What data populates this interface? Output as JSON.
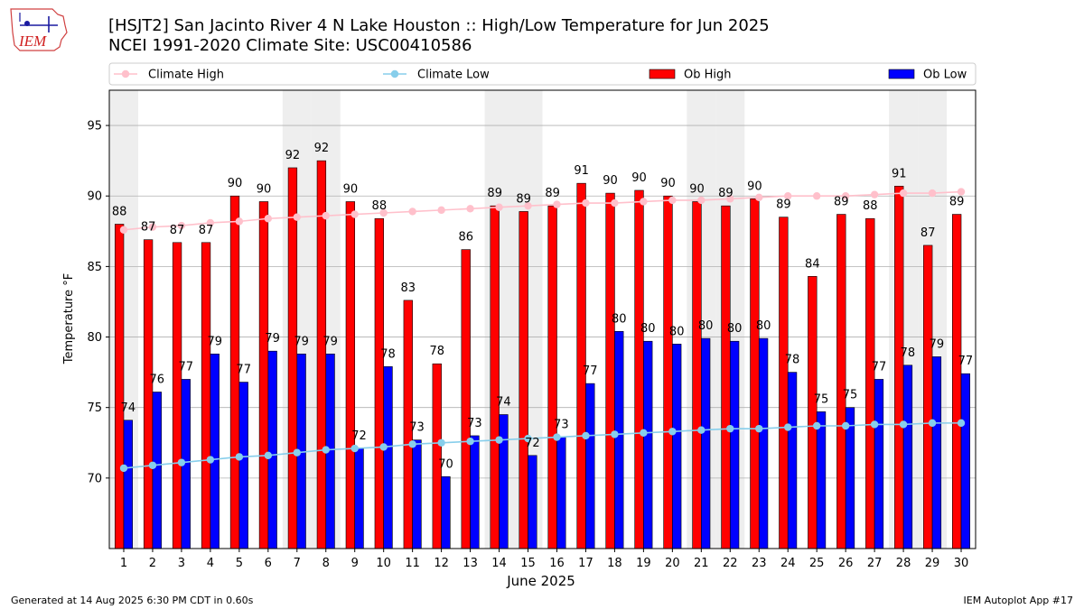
{
  "header": {
    "title_line1": "[HSJT2] San Jacinto River 4 N Lake Houston :: High/Low Temperature for Jun 2025",
    "title_line2": "NCEI 1991-2020 Climate Site: USC00410586",
    "logo_text": "IEM"
  },
  "footer": {
    "generated": "Generated at 14 Aug 2025 6:30 PM CDT in 0.60s",
    "app": "IEM Autoplot App #17"
  },
  "colors": {
    "ob_high": "#ff0000",
    "ob_low": "#0000ff",
    "climate_high": "#ffc0cb",
    "climate_low": "#87ceeb",
    "weekend_band": "#eeeeee",
    "grid": "#b0b0b0"
  },
  "chart_data": {
    "type": "bar",
    "xlabel": "June 2025",
    "ylabel": "Temperature °F",
    "ylim": [
      65,
      97.5
    ],
    "yticks": [
      70,
      75,
      80,
      85,
      90,
      95
    ],
    "grid": "horizontal",
    "legend_placement": "top",
    "categories": [
      1,
      2,
      3,
      4,
      5,
      6,
      7,
      8,
      9,
      10,
      11,
      12,
      13,
      14,
      15,
      16,
      17,
      18,
      19,
      20,
      21,
      22,
      23,
      24,
      25,
      26,
      27,
      28,
      29,
      30
    ],
    "weekend_days": [
      1,
      7,
      8,
      14,
      15,
      21,
      22,
      28,
      29
    ],
    "series": [
      {
        "name": "Ob High",
        "kind": "bar",
        "values": [
          88,
          86.9,
          86.7,
          86.7,
          90,
          89.6,
          92,
          92.5,
          89.6,
          88.4,
          82.6,
          78.1,
          86.2,
          89.3,
          88.9,
          89.3,
          90.9,
          90.2,
          90.4,
          90,
          89.6,
          89.3,
          89.8,
          88.5,
          84.3,
          88.7,
          88.4,
          90.7,
          86.5,
          88.7
        ],
        "labels": [
          88,
          87,
          87,
          87,
          90,
          90,
          92,
          92,
          90,
          88,
          83,
          78,
          86,
          89,
          89,
          89,
          91,
          90,
          90,
          90,
          90,
          89,
          90,
          89,
          84,
          89,
          88,
          91,
          87,
          89
        ]
      },
      {
        "name": "Ob Low",
        "kind": "bar",
        "values": [
          74.1,
          76.1,
          77,
          78.8,
          76.8,
          79,
          78.8,
          78.8,
          72.1,
          77.9,
          72.7,
          70.1,
          73,
          74.5,
          71.6,
          72.9,
          76.7,
          80.4,
          79.7,
          79.5,
          79.9,
          79.7,
          79.9,
          77.5,
          74.7,
          75,
          77,
          78,
          78.6,
          77.4
        ],
        "labels": [
          74,
          76,
          77,
          79,
          77,
          79,
          79,
          79,
          72,
          78,
          73,
          70,
          73,
          74,
          72,
          73,
          77,
          80,
          80,
          80,
          80,
          80,
          80,
          78,
          75,
          75,
          77,
          78,
          79,
          77
        ]
      },
      {
        "name": "Climate High",
        "kind": "line",
        "values": [
          87.6,
          87.8,
          87.9,
          88.1,
          88.2,
          88.4,
          88.5,
          88.6,
          88.7,
          88.8,
          88.9,
          89,
          89.1,
          89.2,
          89.3,
          89.4,
          89.5,
          89.5,
          89.6,
          89.7,
          89.7,
          89.8,
          89.9,
          90,
          90,
          90,
          90.1,
          90.2,
          90.2,
          90.3
        ]
      },
      {
        "name": "Climate Low",
        "kind": "line",
        "values": [
          70.7,
          70.9,
          71.1,
          71.3,
          71.5,
          71.6,
          71.8,
          72,
          72.1,
          72.2,
          72.4,
          72.5,
          72.6,
          72.7,
          72.8,
          72.9,
          73,
          73.1,
          73.2,
          73.3,
          73.4,
          73.5,
          73.5,
          73.6,
          73.7,
          73.7,
          73.8,
          73.8,
          73.9,
          73.9
        ]
      }
    ]
  }
}
